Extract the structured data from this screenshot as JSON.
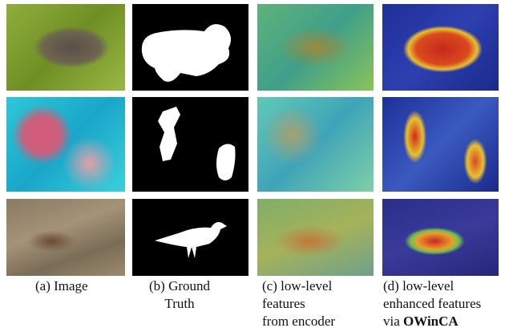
{
  "figure": {
    "captions": [
      {
        "lines": [
          "(a) Image"
        ]
      },
      {
        "lines": [
          "(b) Ground",
          "Truth"
        ]
      },
      {
        "lines": [
          "(c) low-level",
          "features",
          "from encoder"
        ]
      },
      {
        "lines": [
          "(d)  low-level",
          "enhanced features"
        ],
        "last": {
          "text": "via",
          "bold": "OWinCA"
        }
      }
    ]
  }
}
